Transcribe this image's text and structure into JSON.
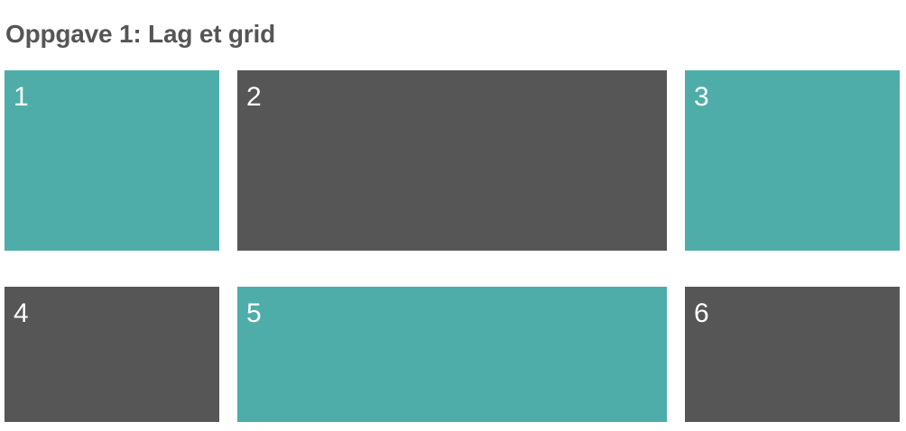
{
  "page": {
    "title": "Oppgave 1: Lag et grid"
  },
  "colors": {
    "teal": "#4eada8",
    "dark": "#565656",
    "title_text": "#555555",
    "cell_text": "#ffffff"
  },
  "grid": {
    "cells": [
      {
        "label": "1",
        "color": "teal"
      },
      {
        "label": "2",
        "color": "dark"
      },
      {
        "label": "3",
        "color": "teal"
      },
      {
        "label": "4",
        "color": "dark"
      },
      {
        "label": "5",
        "color": "teal"
      },
      {
        "label": "6",
        "color": "dark"
      }
    ]
  }
}
